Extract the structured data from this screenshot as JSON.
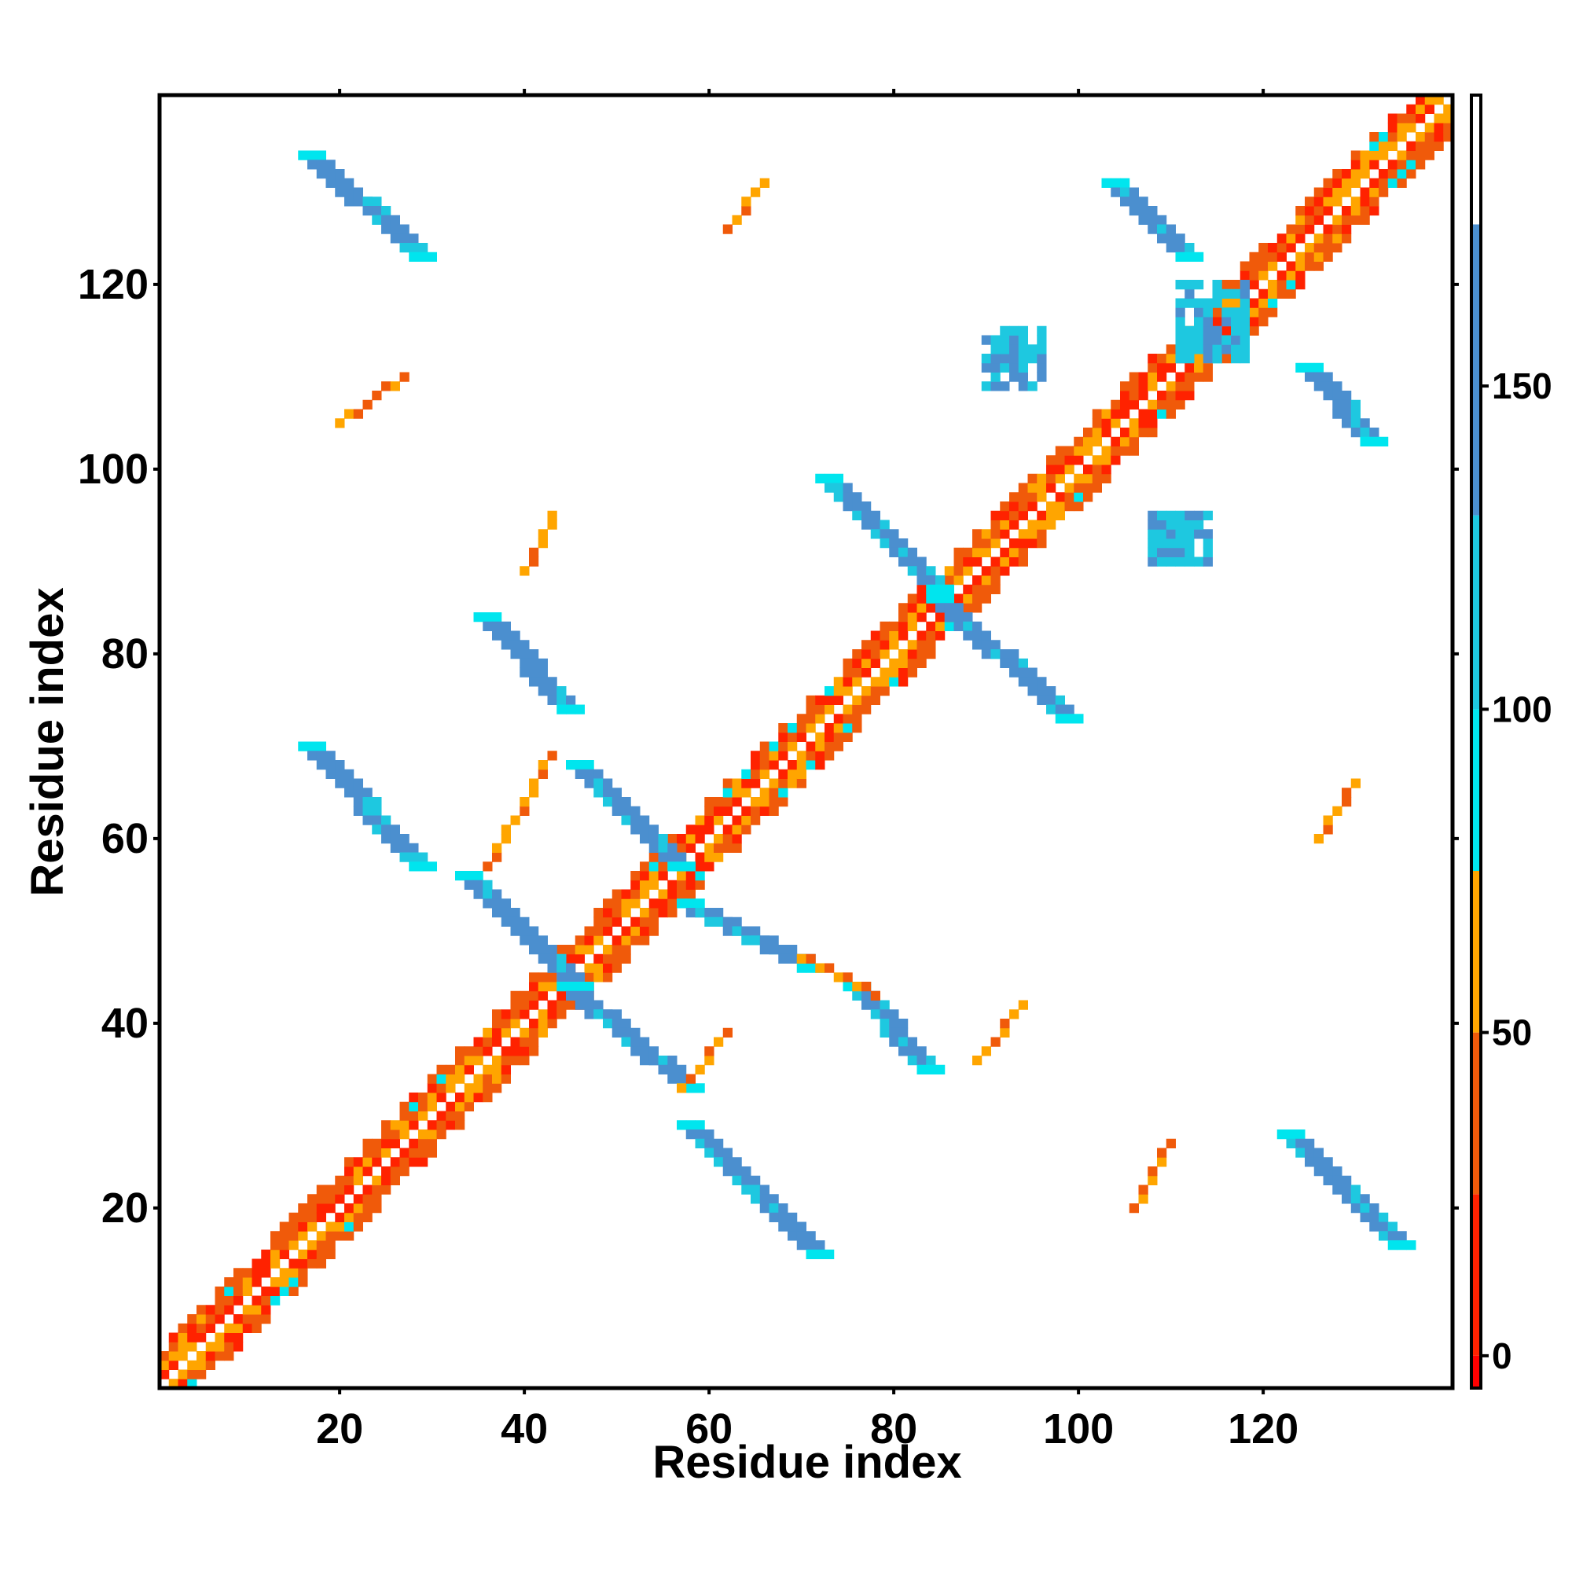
{
  "chart_data": {
    "type": "heatmap",
    "title": "",
    "xlabel": "Residue index",
    "ylabel": "Residue index",
    "xlim": [
      1,
      140
    ],
    "ylim": [
      1,
      140
    ],
    "x_ticks": [
      20,
      40,
      60,
      80,
      100,
      120
    ],
    "y_ticks": [
      20,
      40,
      60,
      80,
      100,
      120
    ],
    "grid": false,
    "colorbar": {
      "ticks": [
        0,
        50,
        100,
        150
      ],
      "range": [
        -5,
        195
      ],
      "bands": [
        {
          "from": -5,
          "to": 0,
          "color": "#ff0000"
        },
        {
          "from": 0,
          "to": 25,
          "color": "#ff2200"
        },
        {
          "from": 25,
          "to": 50,
          "color": "#f05a0a"
        },
        {
          "from": 50,
          "to": 75,
          "color": "#ffa500"
        },
        {
          "from": 75,
          "to": 100,
          "color": "#00e5ee"
        },
        {
          "from": 100,
          "to": 130,
          "color": "#1ec8e0"
        },
        {
          "from": 130,
          "to": 175,
          "color": "#4b8fcf"
        },
        {
          "from": 175,
          "to": 195,
          "color": "#ffffff"
        }
      ]
    },
    "palette": {
      "red": "#ff0000",
      "orange_red": "#ff4500",
      "orange": "#ffa500",
      "cyan": "#00e5ee",
      "sky": "#2ab7e0",
      "steel_blue": "#4b8fcf"
    },
    "regions": [
      {
        "kind": "diag_band",
        "x0": 1,
        "x1": 140,
        "value": 20,
        "note": "main diagonal helical/sequential contacts"
      },
      {
        "kind": "segment",
        "x0": 16,
        "y0": 134,
        "x1": 28,
        "y1": 123,
        "value": 160
      },
      {
        "kind": "segment",
        "x0": 16,
        "y0": 70,
        "x1": 28,
        "y1": 57,
        "value": 160
      },
      {
        "kind": "segment",
        "x0": 33,
        "y0": 56,
        "x1": 45,
        "y1": 44,
        "value": 160
      },
      {
        "kind": "segment",
        "x0": 44,
        "y0": 44,
        "x1": 57,
        "y1": 33,
        "value": 160
      },
      {
        "kind": "segment",
        "x0": 35,
        "y0": 84,
        "x1": 44,
        "y1": 74,
        "value": 160
      },
      {
        "kind": "segment",
        "x0": 45,
        "y0": 68,
        "x1": 56,
        "y1": 57,
        "value": 160
      },
      {
        "kind": "segment",
        "x0": 57,
        "y0": 53,
        "x1": 70,
        "y1": 46,
        "value": 160
      },
      {
        "kind": "segment",
        "x0": 57,
        "y0": 29,
        "x1": 71,
        "y1": 15,
        "value": 160
      },
      {
        "kind": "segment",
        "x0": 72,
        "y0": 99,
        "x1": 84,
        "y1": 87,
        "value": 160
      },
      {
        "kind": "segment",
        "x0": 84,
        "y0": 86,
        "x1": 98,
        "y1": 73,
        "value": 160
      },
      {
        "kind": "segment",
        "x0": 75,
        "y0": 44,
        "x1": 83,
        "y1": 35,
        "value": 160
      },
      {
        "kind": "segment",
        "x0": 103,
        "y0": 131,
        "x1": 111,
        "y1": 123,
        "value": 160
      },
      {
        "kind": "segment",
        "x0": 122,
        "y0": 28,
        "x1": 134,
        "y1": 16,
        "value": 160
      },
      {
        "kind": "segment",
        "x0": 124,
        "y0": 111,
        "x1": 131,
        "y1": 103,
        "value": 160
      },
      {
        "kind": "blob",
        "x0": 90,
        "y0": 109,
        "x1": 96,
        "y1": 115,
        "value": 110
      },
      {
        "kind": "blob",
        "x0": 108,
        "y0": 90,
        "x1": 114,
        "y1": 95,
        "value": 110
      },
      {
        "kind": "blob",
        "x0": 111,
        "y0": 112,
        "x1": 118,
        "y1": 120,
        "value": 110
      },
      {
        "kind": "segment",
        "x0": 62,
        "y0": 126,
        "x1": 66,
        "y1": 131,
        "value": 30
      },
      {
        "kind": "segment",
        "x0": 20,
        "y0": 105,
        "x1": 27,
        "y1": 110,
        "value": 40
      },
      {
        "kind": "segment",
        "x0": 40,
        "y0": 89,
        "x1": 43,
        "y1": 95,
        "value": 30
      },
      {
        "kind": "segment",
        "x0": 36,
        "y0": 57,
        "x1": 43,
        "y1": 69,
        "value": 30
      },
      {
        "kind": "segment",
        "x0": 57,
        "y0": 33,
        "x1": 62,
        "y1": 39,
        "value": 35
      },
      {
        "kind": "segment",
        "x0": 89,
        "y0": 36,
        "x1": 94,
        "y1": 42,
        "value": 40
      },
      {
        "kind": "segment",
        "x0": 106,
        "y0": 20,
        "x1": 110,
        "y1": 27,
        "value": 30
      },
      {
        "kind": "segment",
        "x0": 126,
        "y0": 60,
        "x1": 130,
        "y1": 66,
        "value": 30
      },
      {
        "kind": "segment",
        "x0": 70,
        "y0": 47,
        "x1": 78,
        "y1": 43,
        "value": 30
      }
    ]
  }
}
